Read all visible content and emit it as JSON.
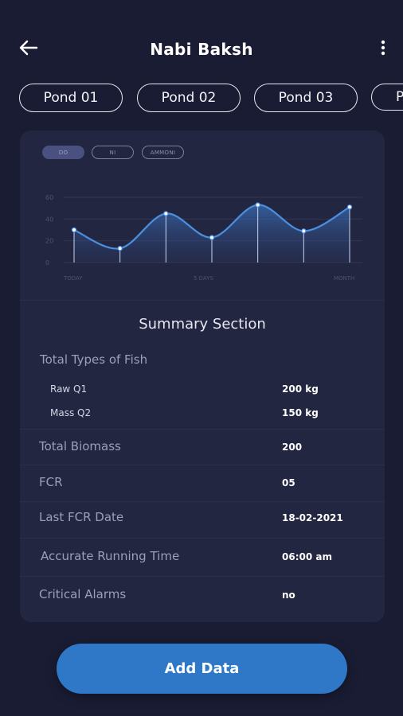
{
  "header": {
    "title": "Nabi Baksh",
    "back_icon": "arrow-left-icon",
    "menu_icon": "more-vertical-icon"
  },
  "tabs": [
    "Pond 01",
    "Pond 02",
    "Pond 03",
    "P"
  ],
  "chart": {
    "chips": [
      "DO",
      "NI",
      "AMMONI"
    ],
    "active_chip": "DO"
  },
  "chart_data": {
    "type": "area",
    "y_ticks": [
      "60",
      "40",
      "20",
      "0"
    ],
    "ylim": [
      0,
      60
    ],
    "x_labels": [
      "TODAY",
      "5 DAYS",
      "MONTH"
    ],
    "values": [
      30,
      13,
      45,
      23,
      53,
      29,
      51
    ],
    "grid": true,
    "color": "#4a8fe0"
  },
  "summary": {
    "title": "Summary Section",
    "fish_label": "Total Types of Fish",
    "fish": [
      {
        "name": "Raw Q1",
        "value": "200 kg"
      },
      {
        "name": "Mass Q2",
        "value": "150 kg"
      }
    ],
    "rows": [
      {
        "label": "Total Biomass",
        "value": "200"
      },
      {
        "label": "FCR",
        "value": "05"
      },
      {
        "label": "Last FCR Date",
        "value": "18-02-2021"
      },
      {
        "label": "Accurate Running Time",
        "value": "06:00 am"
      },
      {
        "label": "Critical Alarms",
        "value": "no"
      }
    ]
  },
  "actions": {
    "add_label": "Add Data"
  },
  "colors": {
    "background": "#1a1c33",
    "card": "#232640",
    "accent": "#2f78c8"
  }
}
